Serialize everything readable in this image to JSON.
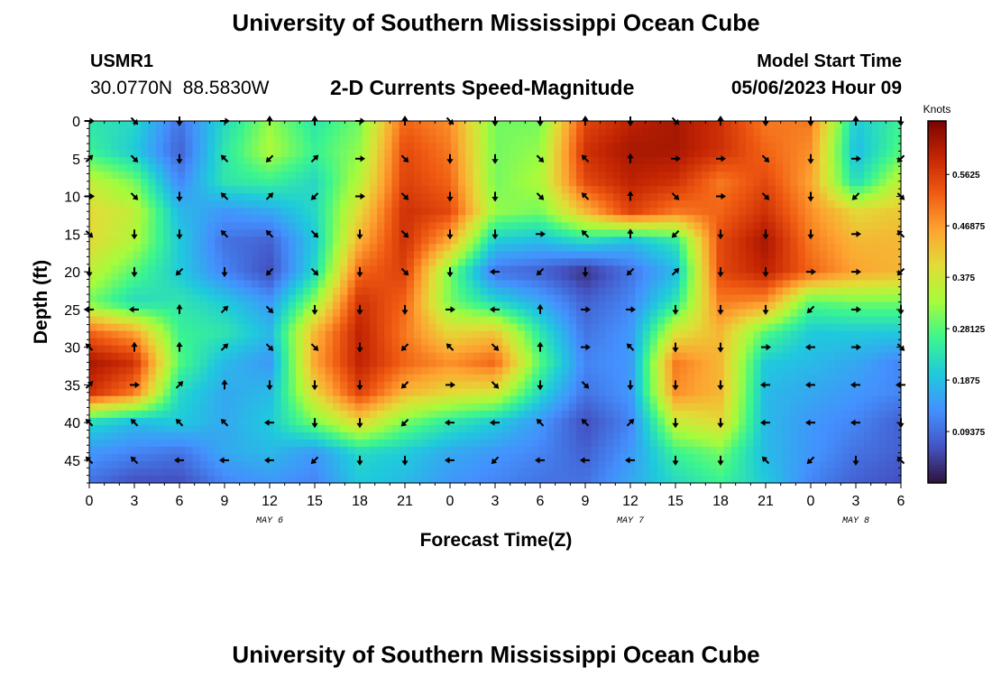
{
  "header": {
    "title": "University of Southern Mississippi Ocean Cube",
    "station_id": "USMR1",
    "coordinates": "30.0770N  88.5830W",
    "subtitle": "2-D Currents Speed-Magnitude",
    "model_start_label": "Model Start Time",
    "model_start_value": "05/06/2023 Hour 09"
  },
  "footer": {
    "title": "University of Southern Mississippi Ocean Cube"
  },
  "chart_data": {
    "type": "heatmap",
    "title": "2-D Currents Speed-Magnitude",
    "xlabel": "Forecast Time(Z)",
    "ylabel": "Depth (ft)",
    "x_tick_labels": [
      "0",
      "3",
      "6",
      "9",
      "12",
      "15",
      "18",
      "21",
      "0",
      "3",
      "6",
      "9",
      "12",
      "15",
      "18",
      "21",
      "0",
      "3",
      "6"
    ],
    "date_labels": [
      {
        "text": "MAY 6",
        "at_tick": 4
      },
      {
        "text": "MAY 7",
        "at_tick": 12
      },
      {
        "text": "MAY 8",
        "at_tick": 17
      }
    ],
    "x_hours": [
      0,
      54
    ],
    "y_ticks": [
      0,
      5,
      10,
      15,
      20,
      25,
      30,
      35,
      40,
      45
    ],
    "ylim": [
      0,
      48
    ],
    "y_inverted": true,
    "colorbar": {
      "label": "Knots",
      "ticks": [
        0.09375,
        0.1875,
        0.28125,
        0.375,
        0.46875,
        0.5625
      ],
      "tick_labels": [
        "0.09375",
        "0.1875",
        "0.28125",
        "0.375",
        "0.46875",
        "0.5625"
      ],
      "range": [
        0,
        0.66
      ]
    },
    "colormap": [
      "#30123b",
      "#4454c4",
      "#4490fe",
      "#1fc9dd",
      "#3bf58f",
      "#a4fc3c",
      "#e1dd37",
      "#fea331",
      "#f05b12",
      "#c42503",
      "#7a0403"
    ],
    "speed_grid": {
      "depths": [
        0,
        4,
        8,
        12,
        16,
        20,
        24,
        28,
        32,
        36,
        40,
        44,
        48
      ],
      "hour_step": 3,
      "values": [
        [
          0.24,
          0.22,
          0.1,
          0.22,
          0.32,
          0.24,
          0.3,
          0.52,
          0.48,
          0.3,
          0.3,
          0.55,
          0.6,
          0.62,
          0.58,
          0.5,
          0.5,
          0.2,
          0.26
        ],
        [
          0.26,
          0.2,
          0.08,
          0.24,
          0.34,
          0.26,
          0.32,
          0.55,
          0.5,
          0.3,
          0.32,
          0.58,
          0.62,
          0.62,
          0.58,
          0.52,
          0.48,
          0.18,
          0.28
        ],
        [
          0.36,
          0.3,
          0.12,
          0.24,
          0.26,
          0.22,
          0.35,
          0.56,
          0.52,
          0.3,
          0.34,
          0.55,
          0.6,
          0.58,
          0.5,
          0.55,
          0.46,
          0.22,
          0.36
        ],
        [
          0.4,
          0.36,
          0.18,
          0.14,
          0.16,
          0.22,
          0.4,
          0.58,
          0.55,
          0.32,
          0.3,
          0.44,
          0.56,
          0.5,
          0.52,
          0.58,
          0.48,
          0.4,
          0.42
        ],
        [
          0.4,
          0.34,
          0.2,
          0.1,
          0.08,
          0.2,
          0.45,
          0.58,
          0.45,
          0.2,
          0.18,
          0.22,
          0.18,
          0.24,
          0.55,
          0.62,
          0.5,
          0.44,
          0.44
        ],
        [
          0.36,
          0.28,
          0.2,
          0.12,
          0.06,
          0.22,
          0.52,
          0.56,
          0.3,
          0.1,
          0.08,
          0.03,
          0.1,
          0.18,
          0.55,
          0.6,
          0.52,
          0.46,
          0.44
        ],
        [
          0.3,
          0.22,
          0.24,
          0.2,
          0.14,
          0.32,
          0.58,
          0.52,
          0.3,
          0.22,
          0.16,
          0.08,
          0.12,
          0.24,
          0.5,
          0.48,
          0.28,
          0.3,
          0.3
        ],
        [
          0.52,
          0.46,
          0.26,
          0.24,
          0.18,
          0.44,
          0.6,
          0.5,
          0.4,
          0.42,
          0.24,
          0.1,
          0.14,
          0.38,
          0.44,
          0.28,
          0.2,
          0.2,
          0.2
        ],
        [
          0.62,
          0.58,
          0.28,
          0.18,
          0.14,
          0.46,
          0.6,
          0.52,
          0.48,
          0.52,
          0.28,
          0.12,
          0.14,
          0.5,
          0.44,
          0.2,
          0.18,
          0.16,
          0.12
        ],
        [
          0.58,
          0.5,
          0.22,
          0.16,
          0.18,
          0.4,
          0.56,
          0.44,
          0.4,
          0.38,
          0.22,
          0.1,
          0.14,
          0.48,
          0.44,
          0.18,
          0.16,
          0.14,
          0.12
        ],
        [
          0.22,
          0.18,
          0.2,
          0.16,
          0.2,
          0.3,
          0.4,
          0.3,
          0.24,
          0.2,
          0.14,
          0.06,
          0.12,
          0.36,
          0.4,
          0.18,
          0.14,
          0.12,
          0.08
        ],
        [
          0.14,
          0.12,
          0.1,
          0.16,
          0.18,
          0.14,
          0.22,
          0.2,
          0.16,
          0.14,
          0.12,
          0.08,
          0.14,
          0.26,
          0.3,
          0.18,
          0.14,
          0.1,
          0.08
        ],
        [
          0.1,
          0.06,
          0.06,
          0.12,
          0.14,
          0.12,
          0.2,
          0.18,
          0.14,
          0.12,
          0.1,
          0.1,
          0.16,
          0.22,
          0.26,
          0.2,
          0.12,
          0.08,
          0.06
        ]
      ]
    },
    "vectors": {
      "depths": [
        0,
        5,
        10,
        15,
        20,
        25,
        30,
        35,
        40,
        45
      ],
      "directions_deg": [
        [
          90,
          135,
          180,
          90,
          0,
          0,
          90,
          0,
          135,
          180,
          180,
          0,
          180,
          135,
          0,
          180,
          180,
          0,
          180
        ],
        [
          45,
          135,
          180,
          315,
          225,
          45,
          90,
          135,
          180,
          180,
          135,
          315,
          0,
          90,
          90,
          135,
          180,
          90,
          225
        ],
        [
          90,
          135,
          180,
          315,
          45,
          225,
          90,
          135,
          180,
          180,
          135,
          315,
          0,
          135,
          90,
          135,
          180,
          225,
          135
        ],
        [
          135,
          180,
          180,
          315,
          315,
          135,
          180,
          135,
          180,
          180,
          90,
          315,
          0,
          225,
          180,
          180,
          180,
          90,
          315
        ],
        [
          180,
          180,
          225,
          180,
          225,
          135,
          180,
          135,
          180,
          270,
          225,
          180,
          225,
          45,
          180,
          180,
          90,
          90,
          225
        ],
        [
          270,
          270,
          0,
          45,
          135,
          180,
          180,
          180,
          90,
          270,
          0,
          90,
          90,
          180,
          180,
          180,
          225,
          90,
          180
        ],
        [
          315,
          0,
          0,
          45,
          135,
          135,
          180,
          225,
          315,
          135,
          0,
          90,
          315,
          180,
          180,
          90,
          270,
          90,
          135
        ],
        [
          45,
          90,
          45,
          0,
          180,
          180,
          180,
          225,
          90,
          135,
          180,
          135,
          180,
          180,
          180,
          270,
          270,
          270,
          270
        ],
        [
          315,
          315,
          315,
          315,
          270,
          180,
          180,
          225,
          270,
          270,
          315,
          315,
          45,
          180,
          180,
          270,
          270,
          270,
          180
        ],
        [
          315,
          315,
          270,
          270,
          270,
          225,
          180,
          180,
          270,
          225,
          270,
          270,
          270,
          180,
          180,
          315,
          225,
          180,
          315
        ]
      ]
    },
    "grid": false
  }
}
